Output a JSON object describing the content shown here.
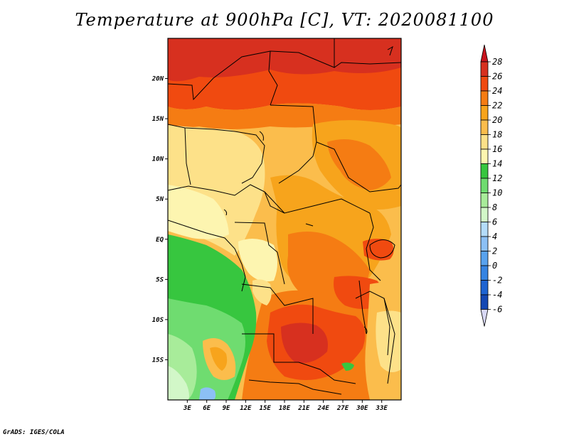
{
  "title": "Temperature at 900hPa [C], VT: 2020081100",
  "credit": "GrADS: IGES/COLA",
  "map": {
    "lon_range": [
      0,
      36
    ],
    "lat_range": [
      -20,
      25
    ],
    "lon_ticks": [
      {
        "value": 3,
        "label": "3E"
      },
      {
        "value": 6,
        "label": "6E"
      },
      {
        "value": 9,
        "label": "9E"
      },
      {
        "value": 12,
        "label": "12E"
      },
      {
        "value": 15,
        "label": "15E"
      },
      {
        "value": 18,
        "label": "18E"
      },
      {
        "value": 21,
        "label": "21E"
      },
      {
        "value": 24,
        "label": "24E"
      },
      {
        "value": 27,
        "label": "27E"
      },
      {
        "value": 30,
        "label": "30E"
      },
      {
        "value": 33,
        "label": "33E"
      }
    ],
    "lat_ticks": [
      {
        "value": 20,
        "label": "20N"
      },
      {
        "value": 15,
        "label": "15N"
      },
      {
        "value": 10,
        "label": "10N"
      },
      {
        "value": 5,
        "label": "5N"
      },
      {
        "value": 0,
        "label": "EQ"
      },
      {
        "value": -5,
        "label": "5S"
      },
      {
        "value": -10,
        "label": "10S"
      },
      {
        "value": -15,
        "label": "15S"
      }
    ]
  },
  "colorbar": {
    "levels": [
      {
        "label": "28",
        "color": "#d7301f"
      },
      {
        "label": "26",
        "color": "#f04a10"
      },
      {
        "label": "24",
        "color": "#f57c13"
      },
      {
        "label": "22",
        "color": "#f7a41c"
      },
      {
        "label": "20",
        "color": "#fbbd4c"
      },
      {
        "label": "18",
        "color": "#fde189"
      },
      {
        "label": "16",
        "color": "#fdf5b0"
      },
      {
        "label": "14",
        "color": "#37c63f"
      },
      {
        "label": "12",
        "color": "#6fdc70"
      },
      {
        "label": "10",
        "color": "#a8ec9a"
      },
      {
        "label": "8",
        "color": "#d2f7c8"
      },
      {
        "label": "6",
        "color": "#b4dcfa"
      },
      {
        "label": "4",
        "color": "#8cc0f5"
      },
      {
        "label": "2",
        "color": "#58a2ee"
      },
      {
        "label": "0",
        "color": "#3684e2"
      },
      {
        "label": "-2",
        "color": "#1e64d2"
      },
      {
        "label": "-4",
        "color": "#1448b4"
      },
      {
        "label": "-6",
        "color": "#0c2891"
      }
    ],
    "top_color": "#c8141e",
    "bottom_color": "#d8d8f5",
    "bottom_label": "-6"
  }
}
